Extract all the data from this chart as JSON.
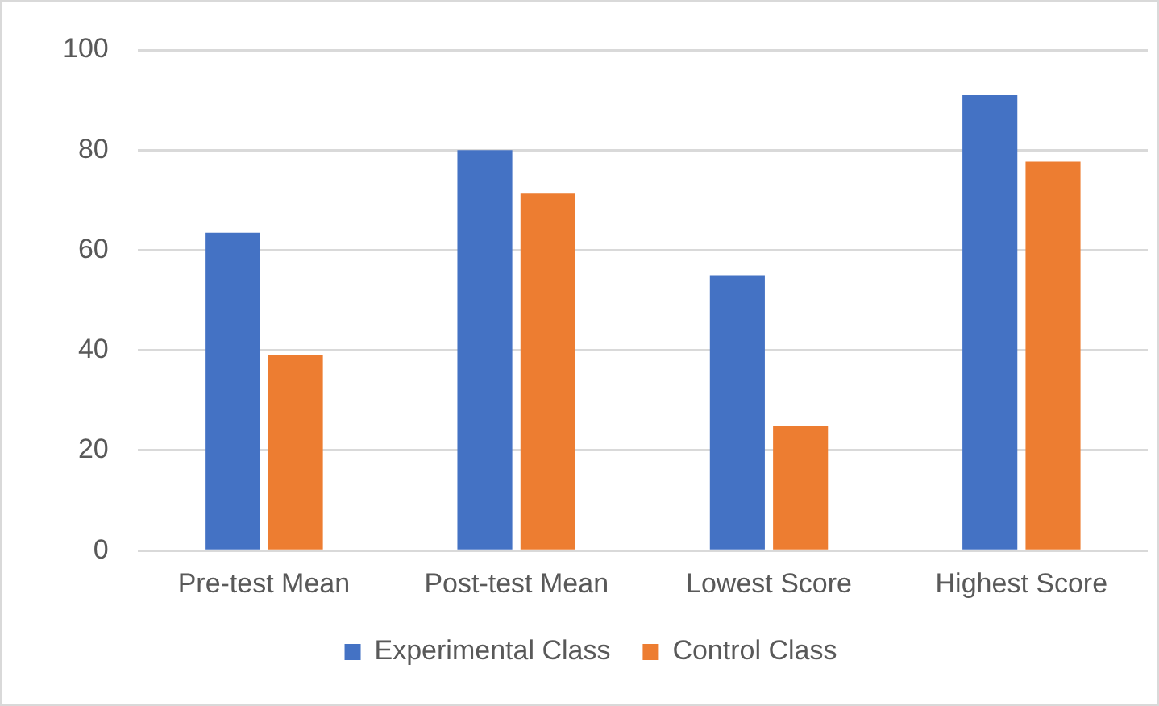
{
  "chart_data": {
    "type": "bar",
    "categories": [
      "Pre-test Mean",
      "Post-test Mean",
      "Lowest Score",
      "Highest Score"
    ],
    "series": [
      {
        "name": "Experimental Class",
        "color": "#4472c4",
        "values": [
          63.5,
          80,
          55,
          91
        ]
      },
      {
        "name": "Control Class",
        "color": "#ed7d31",
        "values": [
          39,
          71.3,
          25,
          77.7
        ]
      }
    ],
    "ylim": [
      0,
      100
    ],
    "yticks": [
      0,
      20,
      40,
      60,
      80,
      100
    ],
    "grid": "y",
    "legend": "bottom"
  }
}
